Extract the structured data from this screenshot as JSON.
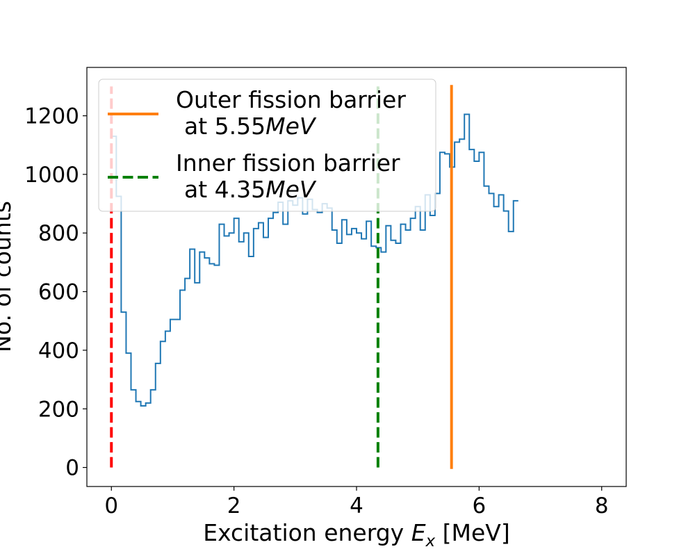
{
  "chart_data": {
    "type": "histogram",
    "xlabel": {
      "main": "Excitation energy ",
      "var": "E",
      "sub": "x",
      "unit": " [MeV]"
    },
    "ylabel": "No. of counts",
    "xlim": [
      -0.4,
      8.4
    ],
    "ylim": [
      -65,
      1365
    ],
    "xticks": [
      0,
      2,
      4,
      6,
      8
    ],
    "yticks": [
      0,
      200,
      400,
      600,
      800,
      1000,
      1200
    ],
    "grid": false,
    "legend_position": "top-left",
    "histogram": {
      "color": "#1f77b4",
      "bin_width": 0.08,
      "bin_start": 0.0,
      "counts": [
        1130,
        925,
        530,
        390,
        265,
        225,
        210,
        220,
        265,
        355,
        430,
        465,
        505,
        505,
        605,
        645,
        745,
        630,
        735,
        715,
        695,
        690,
        830,
        790,
        800,
        850,
        770,
        800,
        720,
        815,
        835,
        785,
        850,
        870,
        905,
        830,
        910,
        895,
        920,
        865,
        915,
        880,
        870,
        900,
        885,
        810,
        765,
        845,
        795,
        815,
        800,
        780,
        840,
        755,
        750,
        735,
        825,
        775,
        765,
        830,
        810,
        850,
        890,
        810,
        930,
        860,
        935,
        1075,
        1070,
        1025,
        1110,
        1120,
        1205,
        1085,
        1045,
        1075,
        960,
        935,
        890,
        930,
        875,
        805,
        910
      ]
    },
    "lines": [
      {
        "x": 0.0,
        "y0": 0,
        "y1": 1300,
        "color": "#ff0000",
        "style": "dashed"
      },
      {
        "x": 4.35,
        "y0": 0,
        "y1": 1300,
        "color": "#008000",
        "style": "dashed"
      },
      {
        "x": 5.55,
        "y0": -5,
        "y1": 1305,
        "color": "#ff7f0e",
        "style": "solid"
      }
    ],
    "legend": [
      {
        "line1": "Outer fission barrier",
        "line2_prefix": "at 5.55",
        "line2_unit": "MeV",
        "color": "#ff7f0e",
        "style": "solid"
      },
      {
        "line1": "Inner fission barrier",
        "line2_prefix": "at 4.35",
        "line2_unit": "MeV",
        "color": "#008000",
        "style": "dashed"
      }
    ]
  }
}
